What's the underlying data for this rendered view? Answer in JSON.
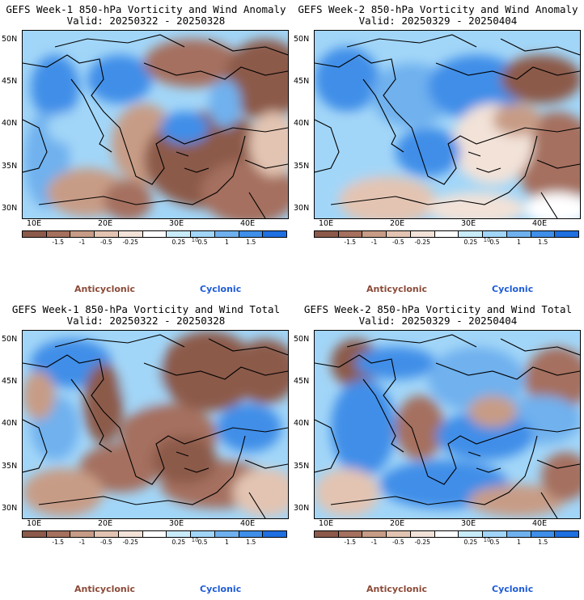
{
  "colors": {
    "dark_brown": "#8c5a4a",
    "brown": "#a5705e",
    "tan": "#c79c86",
    "light_tan": "#e3c4b2",
    "pale": "#f2e2d8",
    "white": "#ffffff",
    "pale_blue": "#c9ecfb",
    "light_blue": "#a2d6f8",
    "mid_blue": "#6fb1ee",
    "blue": "#3f8ee8",
    "dark_blue": "#1e6fe0"
  },
  "colorbar": {
    "ticks": [
      "-1.5",
      "-1",
      "-0.5",
      "-0.25",
      "0.25",
      "0.5",
      "1",
      "1.5"
    ],
    "unit": "10"
  },
  "legend": {
    "anticyclonic": "Anticyclonic",
    "cyclonic": "Cyclonic"
  },
  "axes": {
    "lat_labels": [
      "50N",
      "45N",
      "40N",
      "35N",
      "30N"
    ],
    "lon_labels": [
      "10E",
      "20E",
      "30E",
      "40E"
    ]
  },
  "panels": [
    {
      "title": "GEFS Week-1 850-hPa Vorticity and Wind Anomaly",
      "valid": "Valid: 20250322 - 20250328",
      "pattern": "anom1"
    },
    {
      "title": "GEFS Week-2 850-hPa Vorticity and Wind Anomaly",
      "valid": "Valid: 20250329 - 20250404",
      "pattern": "anom2"
    },
    {
      "title": "GEFS Week-1 850-hPa Vorticity and Wind Total",
      "valid": "Valid: 20250322 - 20250328",
      "pattern": "total1"
    },
    {
      "title": "GEFS Week-2 850-hPa Vorticity and Wind Total",
      "valid": "Valid: 20250329 - 20250404",
      "pattern": "total2"
    }
  ]
}
